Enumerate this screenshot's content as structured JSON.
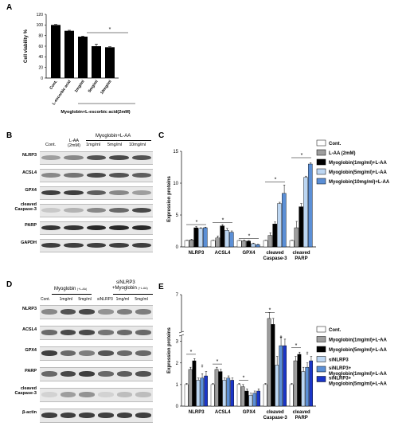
{
  "panels": {
    "A": {
      "letter": "A",
      "ylabel": "Cell viability %",
      "group_caption": "Myoglobin+L-escorbic acid(2mM)",
      "significance": "*"
    },
    "B": {
      "letter": "B",
      "col_cont": "Cont.",
      "col_laa": "L-AA (2mM)",
      "group_label": "Myoglobin+L-AA",
      "doses": [
        "1mg/ml",
        "5mg/ml",
        "10mg/ml"
      ],
      "rows": [
        "NLRP3",
        "ACSL4",
        "GPX4",
        "cleaved Caspase-3",
        "PARP",
        "GAPDH"
      ]
    },
    "C": {
      "letter": "C",
      "ylabel": "Expression proteins",
      "legend": [
        "Cont.",
        "L-AA (2mM)",
        "Myoglobin(1mg/ml)+L-AA",
        "Myoglobin(5mg/ml)+L-AA",
        "Myoglobin(10mg/ml)+L-AA"
      ]
    },
    "D": {
      "letter": "D",
      "cols": [
        "Cont.",
        "1mg/ml",
        "5mg/ml",
        "siNLRP3",
        "1mg/ml",
        "5mg/ml"
      ],
      "group1": "Myoglobin",
      "group1_sub": "(+L-AA)",
      "group2_line1": "siNLRP3",
      "group2_line2": "+Myoglobin",
      "group2_sub": "(+L-AA)",
      "rows": [
        "NLRP3",
        "ACSL4",
        "GPX4",
        "PARP",
        "cleaved Caspase-3",
        "β-actin"
      ]
    },
    "E": {
      "letter": "E",
      "ylabel": "Expression proteins",
      "axis_break_tick": "7",
      "legend": [
        "Cont.",
        "Myoglobin(1mg/ml)+L-AA",
        "Myoglobin(5mg/ml)+L-AA",
        "siNLRP3",
        "siNLRP3+ Myoglobin(1mg/ml)+L-AA",
        "siNLRP3+ Myoglobin(5mg/ml)+L-AA"
      ]
    }
  },
  "chart_data": [
    {
      "panel": "A",
      "type": "bar",
      "categories": [
        "Cont.",
        "L-escorbic acid",
        "1mg/ml",
        "5mg/ml",
        "10mg/ml"
      ],
      "values": [
        100,
        89,
        78,
        60,
        58
      ],
      "errors": [
        1,
        1,
        1,
        4,
        1
      ],
      "colors": [
        "#000000",
        "#000000",
        "#000000",
        "#000000",
        "#000000"
      ],
      "ylabel": "Cell viability %",
      "ylim": [
        0,
        120
      ],
      "yticks": [
        0,
        20,
        40,
        60,
        80,
        100,
        120
      ]
    },
    {
      "panel": "C",
      "type": "bar",
      "categories": [
        "NLRP3",
        "ACSL4",
        "GPX4",
        "cleaved Caspase-3",
        "cleaved PARP"
      ],
      "series": [
        {
          "name": "Cont.",
          "color": "#ffffff",
          "values": [
            1,
            1,
            1,
            1,
            1
          ],
          "errors": [
            0.05,
            0.05,
            0.05,
            0.05,
            0.05
          ]
        },
        {
          "name": "L-AA (2mM)",
          "color": "#9e9e9e",
          "values": [
            1.1,
            1.4,
            0.95,
            1.8,
            3.0
          ],
          "errors": [
            0.1,
            0.3,
            0.1,
            0.4,
            1.0
          ]
        },
        {
          "name": "Myoglobin(1mg/ml)+L-AA",
          "color": "#000000",
          "values": [
            3.0,
            3.3,
            0.9,
            3.6,
            6.3
          ],
          "errors": [
            0.2,
            0.2,
            0.1,
            0.3,
            0.5
          ]
        },
        {
          "name": "Myoglobin(5mg/ml)+L-AA",
          "color": "#bcd6f2",
          "values": [
            2.9,
            2.6,
            0.5,
            6.8,
            10.9
          ],
          "errors": [
            0.1,
            0.3,
            0.1,
            0.2,
            0.2
          ]
        },
        {
          "name": "Myoglobin(10mg/ml)+L-AA",
          "color": "#5b8fd6",
          "values": [
            3.0,
            2.3,
            0.35,
            8.4,
            13.0
          ],
          "errors": [
            0.1,
            0.2,
            0.05,
            1.3,
            0.2
          ]
        }
      ],
      "ylabel": "Expression proteins",
      "ylim": [
        0,
        15
      ],
      "yticks": [
        0,
        5,
        10,
        15
      ]
    },
    {
      "panel": "E",
      "type": "bar",
      "categories": [
        "NLRP3",
        "ACSL4",
        "GPX4",
        "cleaved Caspase-3",
        "cleaved PARP"
      ],
      "series": [
        {
          "name": "Cont.",
          "color": "#ffffff",
          "values": [
            1.0,
            1.0,
            1.0,
            1.0,
            1.0
          ],
          "errors": [
            0.05,
            0.05,
            0.05,
            0.05,
            0.05
          ]
        },
        {
          "name": "Myoglobin(1mg/ml)+L-AA",
          "color": "#9e9e9e",
          "values": [
            1.7,
            1.7,
            0.9,
            6.2,
            2.1
          ],
          "errors": [
            0.1,
            0.1,
            0.1,
            0.2,
            0.2
          ]
        },
        {
          "name": "Myoglobin(5mg/ml)+L-AA",
          "color": "#000000",
          "values": [
            2.1,
            1.6,
            0.7,
            6.0,
            2.4
          ],
          "errors": [
            0.1,
            0.1,
            0.1,
            0.2,
            0.1
          ]
        },
        {
          "name": "siNLRP3",
          "color": "#bcd6f2",
          "values": [
            1.2,
            1.2,
            0.5,
            1.9,
            1.6
          ],
          "errors": [
            0.1,
            0.1,
            0.1,
            0.4,
            0.2
          ]
        },
        {
          "name": "siNLRP3+ Myoglobin(1mg/ml)+L-AA",
          "color": "#5b8fd6",
          "values": [
            1.3,
            1.3,
            0.6,
            2.8,
            1.8
          ],
          "errors": [
            0.2,
            0.1,
            0.1,
            0.4,
            0.2
          ]
        },
        {
          "name": "siNLRP3+ Myoglobin(5mg/ml)+L-AA",
          "color": "#1a35c8",
          "values": [
            1.4,
            1.2,
            0.7,
            2.8,
            2.1
          ],
          "errors": [
            0.2,
            0.1,
            0.1,
            0.3,
            0.2
          ]
        }
      ],
      "ylabel": "Expression proteins",
      "ylim": [
        0,
        7
      ],
      "yticks": [
        0,
        1,
        2,
        3,
        7
      ],
      "axis_break": [
        3.2,
        5.8
      ]
    }
  ]
}
